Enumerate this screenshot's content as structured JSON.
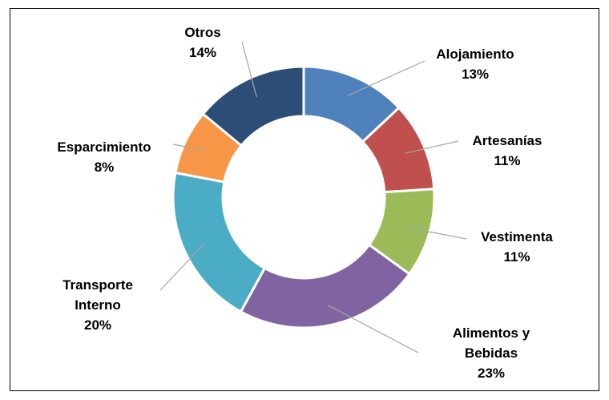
{
  "chart_data": {
    "type": "donut",
    "categories": [
      "Alojamiento",
      "Artesanías",
      "Vestimenta",
      "Alimentos y Bebidas",
      "Transporte Interno",
      "Esparcimiento",
      "Otros"
    ],
    "values": [
      13,
      11,
      11,
      23,
      20,
      8,
      14
    ],
    "value_labels": [
      "13%",
      "11%",
      "11%",
      "23%",
      "20%",
      "8%",
      "14%"
    ],
    "colors": [
      "#4f81bd",
      "#c0504d",
      "#9bbb59",
      "#8064a2",
      "#4bacc6",
      "#f79646",
      "#2c4d75"
    ]
  }
}
